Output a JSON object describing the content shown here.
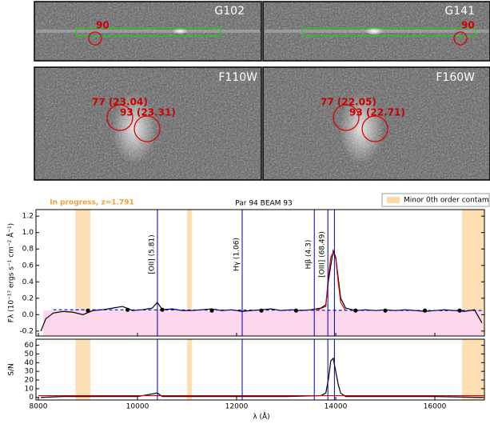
{
  "image_panels": [
    {
      "filter": "G102",
      "markers": [
        "90"
      ]
    },
    {
      "filter": "G141",
      "markers": [
        "90"
      ]
    },
    {
      "filter": "F110W",
      "markers": [
        "77 (23.04)",
        "93 (23.31)"
      ]
    },
    {
      "filter": "F160W",
      "markers": [
        "77 (22.05)",
        "93 (22.71)"
      ]
    }
  ],
  "chart_data": [
    {
      "type": "line",
      "title": "Par 94  BEAM 93",
      "annotation": "In progress, z=1.791",
      "ylabel": "Fλ (10⁻¹⁷ ergs s⁻¹ cm⁻² Å⁻¹)",
      "xlim": [
        8000,
        17000
      ],
      "ylim": [
        -0.26,
        1.28
      ],
      "yticks": [
        -0.2,
        {
          "value": 0,
          "label": "0.0"
        },
        0.2,
        0.4,
        0.6,
        0.8,
        {
          "value": 1,
          "label": "1.0"
        },
        1.2
      ],
      "shaded_regions": {
        "name": "Minor 0th order contam",
        "color": "#fdd9a6",
        "ranges": [
          [
            8750,
            9050
          ],
          [
            11000,
            11100
          ],
          [
            16550,
            17000
          ]
        ]
      },
      "emission_lines": [
        {
          "label": "[OII]  (5.81)",
          "x": 10402,
          "color": "#0000aa"
        },
        {
          "label": "Hγ  (1.06)",
          "x": 12113,
          "color": "#0000aa"
        },
        {
          "label": "Hβ  (4.3)",
          "x": 13568,
          "color": "#0000aa"
        },
        {
          "label": "[OIII]  (68.49)",
          "x": 13841,
          "color": "#0000aa"
        },
        {
          "x": 13974,
          "color": "#0000aa"
        }
      ],
      "series": [
        {
          "kind": "area",
          "color": "#fbd6ec",
          "x": [
            8100,
            16950
          ],
          "values": [
            0.05,
            0.05
          ]
        },
        {
          "kind": "line",
          "color": "#000000",
          "x": [
            8050,
            8150,
            8300,
            8500,
            8700,
            8900,
            9100,
            9300,
            9500,
            9700,
            9900,
            10100,
            10300,
            10400,
            10500,
            10700,
            10900,
            11100,
            11300,
            11500,
            11700,
            11900,
            12100,
            12300,
            12500,
            12700,
            12900,
            13100,
            13300,
            13500,
            13700,
            13800,
            13850,
            13900,
            13950,
            14000,
            14050,
            14100,
            14200,
            14400,
            14600,
            14800,
            15000,
            15200,
            15400,
            15600,
            15800,
            16000,
            16200,
            16400,
            16600,
            16800,
            16950
          ],
          "values": [
            -0.2,
            -0.05,
            0.02,
            0.04,
            0.03,
            0.0,
            0.05,
            0.06,
            0.08,
            0.1,
            0.05,
            0.06,
            0.08,
            0.15,
            0.06,
            0.07,
            0.05,
            0.05,
            0.06,
            0.07,
            0.05,
            0.06,
            0.04,
            0.05,
            0.06,
            0.07,
            0.05,
            0.06,
            0.05,
            0.06,
            0.08,
            0.12,
            0.4,
            0.6,
            0.78,
            0.7,
            0.45,
            0.2,
            0.08,
            0.05,
            0.06,
            0.05,
            0.06,
            0.05,
            0.06,
            0.05,
            0.04,
            0.05,
            0.06,
            0.05,
            0.04,
            0.06,
            -0.1
          ]
        },
        {
          "kind": "dashed",
          "color": "#0000ff",
          "x": [
            8300,
            17000
          ],
          "values": [
            0.06,
            0.05
          ]
        },
        {
          "kind": "line",
          "color": "#dd0000",
          "x": [
            13600,
            13800,
            13850,
            13900,
            13950,
            14000,
            14050,
            14100,
            14200
          ],
          "values": [
            0.05,
            0.1,
            0.45,
            0.7,
            0.76,
            0.68,
            0.4,
            0.15,
            0.05
          ]
        },
        {
          "kind": "dots",
          "color": "#000000",
          "x": [
            9000,
            9800,
            10500,
            11500,
            12500,
            13200,
            14400,
            15000,
            15800,
            16500
          ],
          "values": [
            0.05,
            0.06,
            0.06,
            0.05,
            0.05,
            0.05,
            0.05,
            0.05,
            0.05,
            0.05
          ]
        }
      ]
    },
    {
      "type": "line",
      "ylabel": "S/N",
      "xlabel": "λ (Å)",
      "xlim": [
        8000,
        17000
      ],
      "ylim": [
        -3,
        67
      ],
      "xticks": [
        8000,
        10000,
        12000,
        14000,
        16000
      ],
      "yticks": [
        0,
        10,
        20,
        30,
        40,
        50,
        60
      ],
      "series": [
        {
          "kind": "line",
          "color": "#000000",
          "x": [
            8050,
            8500,
            9000,
            9500,
            10000,
            10400,
            10500,
            11000,
            12000,
            13000,
            13700,
            13800,
            13850,
            13900,
            13950,
            14000,
            14050,
            14100,
            14200,
            15000,
            16000,
            16950
          ],
          "values": [
            0,
            1,
            1,
            1,
            1,
            5,
            1,
            1,
            1,
            1,
            2,
            5,
            20,
            42,
            45,
            30,
            15,
            5,
            1,
            1,
            1,
            0
          ]
        },
        {
          "kind": "line",
          "color": "#dd0000",
          "x": [
            8000,
            17000
          ],
          "values": [
            2,
            2
          ]
        }
      ]
    }
  ]
}
